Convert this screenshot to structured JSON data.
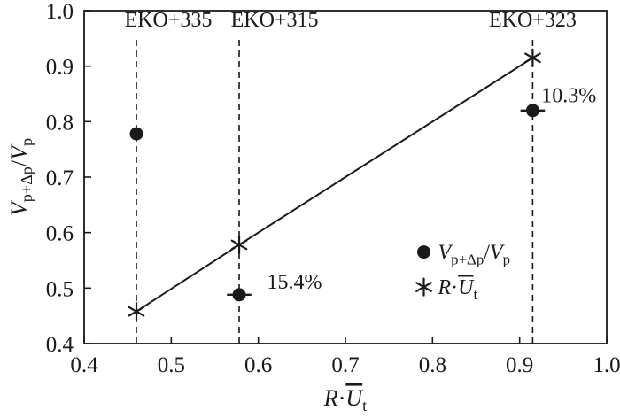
{
  "chart_data": {
    "type": "scatter",
    "title": "",
    "xlim": [
      0.4,
      1.0
    ],
    "ylim": [
      0.4,
      1.0
    ],
    "xticks": [
      0.4,
      0.5,
      0.6,
      0.7,
      0.8,
      0.9,
      1.0
    ],
    "yticks": [
      0.4,
      0.5,
      0.6,
      0.7,
      0.8,
      0.9,
      1.0
    ],
    "tick_decimals": 1,
    "grid": false,
    "xlabel_tokens": [
      {
        "text": "R",
        "italic": true
      },
      {
        "text": "·"
      },
      {
        "text": "U",
        "italic": true,
        "overline": true
      },
      {
        "text": "t",
        "sub": true
      }
    ],
    "ylabel_tokens": [
      {
        "text": "V",
        "italic": true
      },
      {
        "text": "p+Δp",
        "sub": true
      },
      {
        "text": "/"
      },
      {
        "text": "V",
        "italic": true
      },
      {
        "text": "p",
        "sub": true
      }
    ],
    "vlines": [
      {
        "x": 0.46,
        "label": "EKO+335",
        "label_dx": 36
      },
      {
        "x": 0.578,
        "label": "EKO+315",
        "label_dx": 40
      },
      {
        "x": 0.915,
        "label": "EKO+323",
        "label_dx": 0
      }
    ],
    "series": [
      {
        "name": "Vp+Δp/Vp",
        "marker": "circle",
        "line": false,
        "points": [
          {
            "x": 0.46,
            "y": 0.778,
            "xerr": 0
          },
          {
            "x": 0.578,
            "y": 0.488,
            "xerr": 0.014
          },
          {
            "x": 0.915,
            "y": 0.82,
            "xerr": 0.014
          }
        ]
      },
      {
        "name": "R·Ut",
        "marker": "asterisk",
        "line": true,
        "points": [
          {
            "x": 0.46,
            "y": 0.458,
            "xerr": 0
          },
          {
            "x": 0.578,
            "y": 0.578,
            "xerr": 0
          },
          {
            "x": 0.915,
            "y": 0.915,
            "xerr": 0
          }
        ]
      }
    ],
    "annotations": [
      {
        "text": "15.4%",
        "x": 0.61,
        "y": 0.512
      },
      {
        "text": "10.3%",
        "x": 0.925,
        "y": 0.848
      }
    ],
    "legend": {
      "x": 0.79,
      "items": [
        {
          "marker": "circle",
          "y": 0.565,
          "label_tokens": [
            {
              "text": "V",
              "italic": true
            },
            {
              "text": "p+Δp",
              "sub": true
            },
            {
              "text": "/"
            },
            {
              "text": "V",
              "italic": true
            },
            {
              "text": "p",
              "sub": true
            }
          ]
        },
        {
          "marker": "asterisk",
          "y": 0.502,
          "label_tokens": [
            {
              "text": "R",
              "italic": true
            },
            {
              "text": "·"
            },
            {
              "text": "U",
              "italic": true,
              "overline": true
            },
            {
              "text": "t",
              "sub": true
            }
          ]
        }
      ]
    },
    "colors": {
      "foreground": "#1a1a1a",
      "background": "#ffffff"
    }
  }
}
